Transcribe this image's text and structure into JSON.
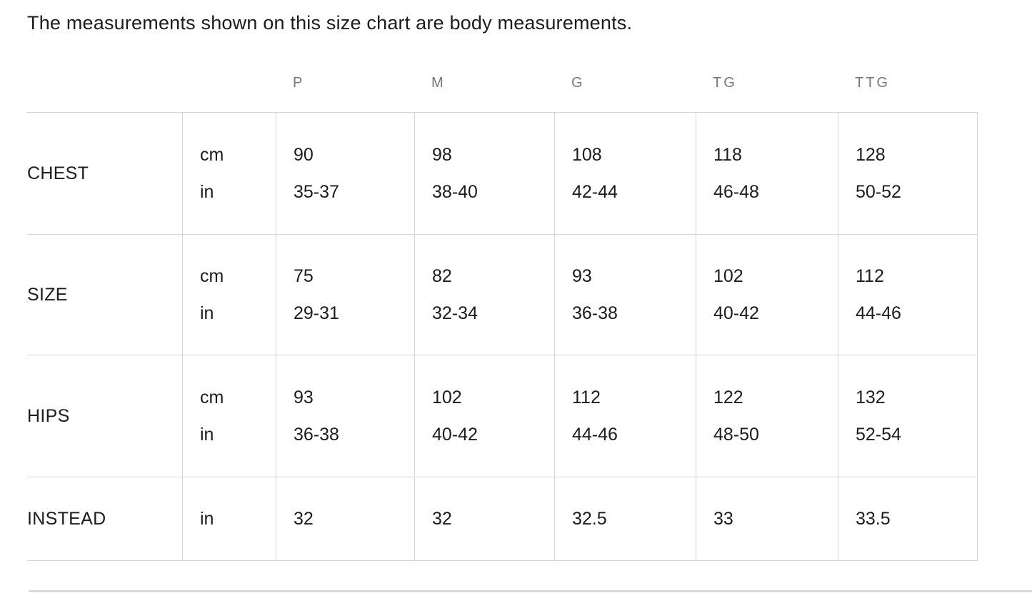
{
  "page": {
    "intro": "The measurements shown on this size chart are body measurements."
  },
  "size_chart": {
    "columns": [
      "P",
      "M",
      "G",
      "TG",
      "TTG"
    ],
    "rows": [
      {
        "label": "CHEST",
        "units": [
          "cm",
          "in"
        ],
        "cm": [
          "90",
          "98",
          "108",
          "118",
          "128"
        ],
        "in": [
          "35-37",
          "38-40",
          "42-44",
          "46-48",
          "50-52"
        ]
      },
      {
        "label": "SIZE",
        "units": [
          "cm",
          "in"
        ],
        "cm": [
          "75",
          "82",
          "93",
          "102",
          "112"
        ],
        "in": [
          "29-31",
          "32-34",
          "36-38",
          "40-42",
          "44-46"
        ]
      },
      {
        "label": "HIPS",
        "units": [
          "cm",
          "in"
        ],
        "cm": [
          "93",
          "102",
          "112",
          "122",
          "132"
        ],
        "in": [
          "36-38",
          "40-42",
          "44-46",
          "48-50",
          "52-54"
        ]
      },
      {
        "label": "INSTEAD",
        "units": [
          "in"
        ],
        "values": [
          "32",
          "32",
          "32.5",
          "33",
          "33.5"
        ]
      }
    ]
  },
  "colors": {
    "text": "#1c1c1e",
    "header_muted": "#77777b",
    "border": "#d6d6d8"
  }
}
